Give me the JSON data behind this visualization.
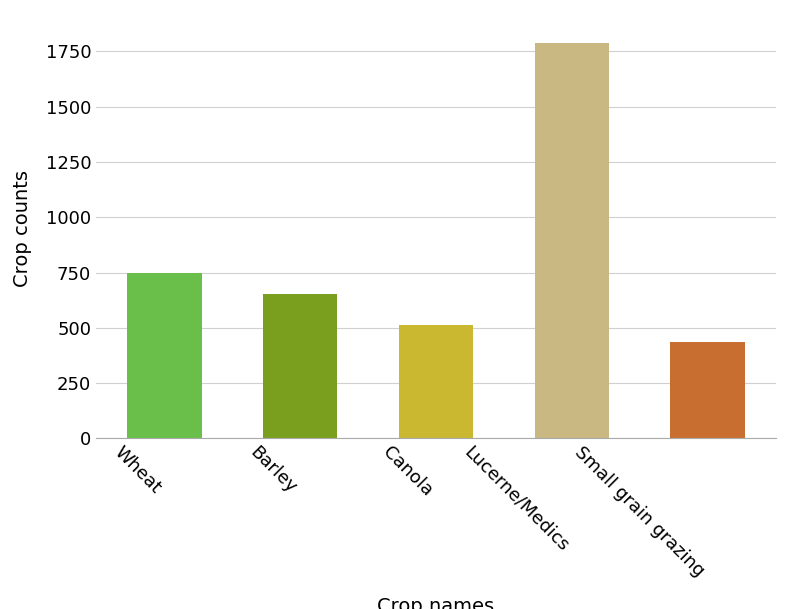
{
  "categories": [
    "Wheat",
    "Barley",
    "Canola",
    "Lucerne/Medics",
    "Small grain grazing"
  ],
  "values": [
    750,
    655,
    515,
    1790,
    435
  ],
  "bar_colors": [
    "#6abf4b",
    "#7a9e1e",
    "#c9b830",
    "#c9b882",
    "#c86e30"
  ],
  "xlabel": "Crop names",
  "ylabel": "Crop counts",
  "ylim": [
    0,
    1900
  ],
  "yticks": [
    0,
    250,
    500,
    750,
    1000,
    1250,
    1500,
    1750
  ],
  "xlabel_fontsize": 14,
  "ylabel_fontsize": 14,
  "tick_fontsize": 13,
  "background_color": "#ffffff",
  "grid_color": "#d0d0d0",
  "bar_width": 0.55,
  "rotation": 315
}
